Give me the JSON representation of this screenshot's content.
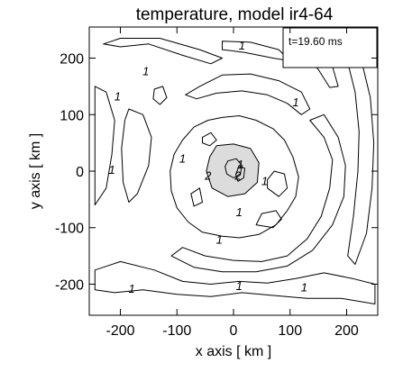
{
  "chart_data": {
    "type": "contour",
    "title": "temperature, model ir4-64",
    "xlabel": "x axis [ km ]",
    "ylabel": "y axis [ km ]",
    "xlim": [
      -255,
      255
    ],
    "ylim": [
      -255,
      255
    ],
    "xticks": [
      -200,
      -100,
      0,
      100,
      200
    ],
    "yticks": [
      -200,
      -100,
      0,
      100,
      200
    ],
    "xtick_labels": [
      "-200",
      "-100",
      "0",
      "100",
      "200"
    ],
    "ytick_labels": [
      "-200",
      "-100",
      "0",
      "100",
      "200"
    ],
    "time_label": "t=19.60 ms",
    "contour_levels": [
      1,
      2
    ],
    "contour_labels": [
      {
        "text": "1",
        "x": 15,
        "y": 215
      },
      {
        "text": "1",
        "x": -205,
        "y": 125
      },
      {
        "text": "1",
        "x": -155,
        "y": 170
      },
      {
        "text": "1",
        "x": 110,
        "y": 115
      },
      {
        "text": "1",
        "x": -90,
        "y": 15
      },
      {
        "text": "1",
        "x": -215,
        "y": -5
      },
      {
        "text": "1",
        "x": 55,
        "y": -25
      },
      {
        "text": "1",
        "x": -25,
        "y": -128
      },
      {
        "text": "1",
        "x": -180,
        "y": -215
      },
      {
        "text": "1",
        "x": 10,
        "y": -210
      },
      {
        "text": "1",
        "x": 125,
        "y": -213
      },
      {
        "text": "1",
        "x": 10,
        "y": -80
      },
      {
        "text": "2",
        "x": -45,
        "y": -15
      },
      {
        "text": "2",
        "x": 8,
        "y": -15
      },
      {
        "text": "1",
        "x": 12,
        "y": 5
      }
    ],
    "contours": [
      {
        "level": 2,
        "filled": true,
        "points": [
          [
            -30,
            45
          ],
          [
            0,
            48
          ],
          [
            30,
            40
          ],
          [
            45,
            15
          ],
          [
            42,
            -20
          ],
          [
            20,
            -40
          ],
          [
            -10,
            -45
          ],
          [
            -38,
            -30
          ],
          [
            -48,
            0
          ],
          [
            -42,
            25
          ],
          [
            -30,
            45
          ]
        ]
      },
      {
        "level": 2,
        "filled": false,
        "points": [
          [
            -10,
            18
          ],
          [
            5,
            22
          ],
          [
            15,
            10
          ],
          [
            12,
            -5
          ],
          [
            0,
            -12
          ],
          [
            -12,
            -5
          ],
          [
            -15,
            8
          ],
          [
            -10,
            18
          ]
        ]
      },
      {
        "level": 2,
        "filled": false,
        "points": [
          [
            10,
            10
          ],
          [
            20,
            5
          ],
          [
            18,
            -12
          ],
          [
            8,
            -18
          ],
          [
            4,
            -6
          ],
          [
            10,
            10
          ]
        ]
      },
      {
        "level": 1,
        "filled": false,
        "points": [
          [
            -20,
            95
          ],
          [
            10,
            98
          ],
          [
            40,
            90
          ],
          [
            70,
            75
          ],
          [
            90,
            55
          ],
          [
            105,
            25
          ],
          [
            115,
            -10
          ],
          [
            110,
            -45
          ],
          [
            95,
            -70
          ],
          [
            75,
            -95
          ],
          [
            45,
            -112
          ],
          [
            10,
            -118
          ],
          [
            -20,
            -115
          ],
          [
            -55,
            -108
          ],
          [
            -80,
            -90
          ],
          [
            -100,
            -65
          ],
          [
            -110,
            -35
          ],
          [
            -112,
            0
          ],
          [
            -105,
            30
          ],
          [
            -90,
            55
          ],
          [
            -70,
            78
          ],
          [
            -45,
            90
          ],
          [
            -20,
            95
          ]
        ]
      },
      {
        "level": 1,
        "filled": false,
        "points": [
          [
            -60,
            150
          ],
          [
            -20,
            170
          ],
          [
            30,
            172
          ],
          [
            80,
            160
          ],
          [
            120,
            140
          ],
          [
            135,
            110
          ],
          [
            120,
            100
          ],
          [
            95,
            120
          ],
          [
            60,
            135
          ],
          [
            15,
            142
          ],
          [
            -30,
            138
          ],
          [
            -65,
            128
          ],
          [
            -85,
            135
          ],
          [
            -60,
            150
          ]
        ]
      },
      {
        "level": 1,
        "filled": false,
        "points": [
          [
            135,
            90
          ],
          [
            160,
            60
          ],
          [
            175,
            20
          ],
          [
            170,
            -30
          ],
          [
            155,
            -80
          ],
          [
            130,
            -120
          ],
          [
            95,
            -150
          ],
          [
            50,
            -160
          ],
          [
            0,
            -158
          ],
          [
            -50,
            -150
          ],
          [
            -90,
            -135
          ],
          [
            -110,
            -150
          ],
          [
            -70,
            -170
          ],
          [
            -20,
            -178
          ],
          [
            40,
            -178
          ],
          [
            95,
            -168
          ],
          [
            140,
            -140
          ],
          [
            175,
            -95
          ],
          [
            195,
            -45
          ],
          [
            198,
            10
          ],
          [
            185,
            60
          ],
          [
            160,
            100
          ],
          [
            135,
            90
          ]
        ]
      },
      {
        "level": 1,
        "filled": false,
        "points": [
          [
            -200,
            220
          ],
          [
            -150,
            225
          ],
          [
            -90,
            205
          ],
          [
            -40,
            190
          ],
          [
            -20,
            200
          ],
          [
            -60,
            215
          ],
          [
            -130,
            235
          ],
          [
            -200,
            235
          ],
          [
            -230,
            225
          ],
          [
            -200,
            220
          ]
        ]
      },
      {
        "level": 1,
        "filled": false,
        "points": [
          [
            -245,
            150
          ],
          [
            -225,
            140
          ],
          [
            -210,
            90
          ],
          [
            -215,
            30
          ],
          [
            -225,
            -30
          ],
          [
            -245,
            -60
          ],
          [
            -245,
            150
          ]
        ]
      },
      {
        "level": 1,
        "filled": false,
        "points": [
          [
            -185,
            110
          ],
          [
            -160,
            100
          ],
          [
            -145,
            60
          ],
          [
            -150,
            10
          ],
          [
            -170,
            -40
          ],
          [
            -185,
            -55
          ],
          [
            -195,
            -20
          ],
          [
            -198,
            40
          ],
          [
            -192,
            90
          ],
          [
            -185,
            110
          ]
        ]
      },
      {
        "level": 1,
        "filled": false,
        "points": [
          [
            -245,
            -175
          ],
          [
            -200,
            -160
          ],
          [
            -140,
            -175
          ],
          [
            -90,
            -195
          ],
          [
            -40,
            -200
          ],
          [
            10,
            -195
          ],
          [
            60,
            -198
          ],
          [
            110,
            -190
          ],
          [
            160,
            -180
          ],
          [
            210,
            -190
          ],
          [
            250,
            -200
          ],
          [
            250,
            -235
          ],
          [
            190,
            -225
          ],
          [
            130,
            -225
          ],
          [
            70,
            -220
          ],
          [
            15,
            -215
          ],
          [
            -40,
            -222
          ],
          [
            -100,
            -218
          ],
          [
            -160,
            -210
          ],
          [
            -210,
            -215
          ],
          [
            -245,
            -210
          ],
          [
            -245,
            -175
          ]
        ]
      },
      {
        "level": 1,
        "filled": false,
        "points": [
          [
            180,
            240
          ],
          [
            200,
            200
          ],
          [
            215,
            140
          ],
          [
            222,
            70
          ],
          [
            220,
            0
          ],
          [
            212,
            -80
          ],
          [
            202,
            -150
          ],
          [
            215,
            -165
          ],
          [
            235,
            -110
          ],
          [
            245,
            -30
          ],
          [
            248,
            50
          ],
          [
            242,
            130
          ],
          [
            225,
            200
          ],
          [
            205,
            240
          ],
          [
            180,
            240
          ]
        ]
      },
      {
        "level": 1,
        "filled": false,
        "points": [
          [
            120,
            235
          ],
          [
            150,
            215
          ],
          [
            175,
            185
          ],
          [
            185,
            150
          ],
          [
            170,
            148
          ],
          [
            150,
            180
          ],
          [
            125,
            205
          ],
          [
            105,
            225
          ],
          [
            120,
            235
          ]
        ]
      },
      {
        "level": 1,
        "filled": false,
        "points": [
          [
            -140,
            145
          ],
          [
            -125,
            150
          ],
          [
            -118,
            130
          ],
          [
            -130,
            118
          ],
          [
            -142,
            128
          ],
          [
            -140,
            145
          ]
        ]
      },
      {
        "level": 1,
        "filled": false,
        "points": [
          [
            60,
            -30
          ],
          [
            80,
            -45
          ],
          [
            95,
            -30
          ],
          [
            90,
            -5
          ],
          [
            72,
            0
          ],
          [
            60,
            -15
          ],
          [
            60,
            -30
          ]
        ]
      },
      {
        "level": 1,
        "filled": false,
        "points": [
          [
            -55,
            60
          ],
          [
            -40,
            68
          ],
          [
            -30,
            55
          ],
          [
            -42,
            45
          ],
          [
            -55,
            50
          ],
          [
            -55,
            60
          ]
        ]
      },
      {
        "level": 1,
        "filled": false,
        "points": [
          [
            40,
            -95
          ],
          [
            70,
            -100
          ],
          [
            85,
            -85
          ],
          [
            75,
            -70
          ],
          [
            50,
            -75
          ],
          [
            40,
            -95
          ]
        ]
      },
      {
        "level": 1,
        "filled": false,
        "points": [
          [
            -75,
            -40
          ],
          [
            -60,
            -30
          ],
          [
            -55,
            -55
          ],
          [
            -70,
            -62
          ],
          [
            -75,
            -40
          ]
        ]
      },
      {
        "level": 1,
        "filled": false,
        "points": [
          [
            -20,
            230
          ],
          [
            30,
            228
          ],
          [
            80,
            215
          ],
          [
            100,
            195
          ],
          [
            70,
            200
          ],
          [
            20,
            210
          ],
          [
            -20,
            215
          ],
          [
            -20,
            230
          ]
        ]
      }
    ]
  }
}
